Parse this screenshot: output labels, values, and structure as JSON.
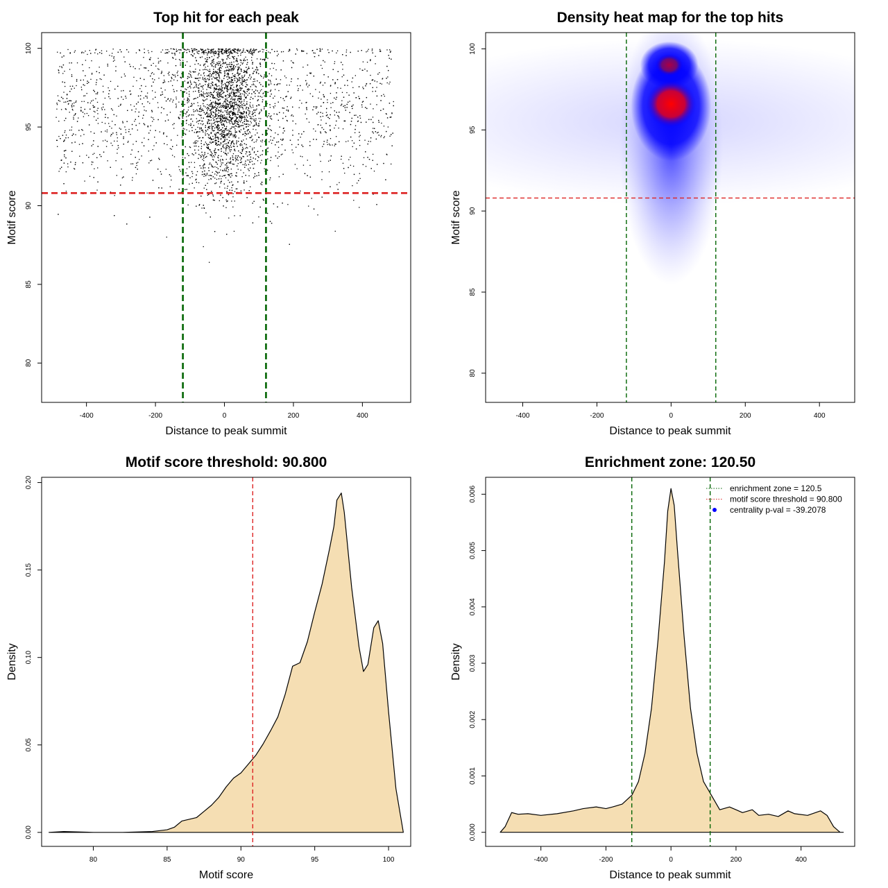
{
  "chart_data": [
    {
      "type": "scatter",
      "title": "Top hit for each peak",
      "xlabel": "Distance to peak summit",
      "ylabel": "Motif score",
      "xlim": [
        -530,
        540
      ],
      "ylim": [
        77.5,
        101.0
      ],
      "xticks": [
        -400,
        -200,
        0,
        200,
        400
      ],
      "yticks": [
        80,
        85,
        90,
        95,
        100
      ],
      "vlines": [
        -120.5,
        120.5
      ],
      "vline_color": "#006400",
      "hline": 90.8,
      "hline_color": "#dd2222",
      "point_color": "#000000",
      "point_summary": "dense cloud of top hits concentrated around distance 0 and scores 90-100"
    },
    {
      "type": "heatmap",
      "title": "Density heat map for the top hits",
      "xlabel": "Distance to peak summit",
      "ylabel": "Motif score",
      "xlim": [
        -500,
        495
      ],
      "ylim": [
        78.2,
        101.0
      ],
      "xticks": [
        -400,
        -200,
        0,
        200,
        400
      ],
      "yticks": [
        80,
        85,
        90,
        95,
        100
      ],
      "vlines": [
        -120.5,
        120.5
      ],
      "vline_color": "#006400",
      "hline": 90.8,
      "hline_color": "#dd2222",
      "hotspots": [
        {
          "x": 0,
          "y": 96.6,
          "peak": "red"
        },
        {
          "x": -5,
          "y": 99.0,
          "peak": "darkred"
        }
      ]
    },
    {
      "type": "area",
      "title": "Motif score threshold: 90.800",
      "xlabel": "Motif score",
      "ylabel": "Density",
      "xlim": [
        76.5,
        101.5
      ],
      "ylim": [
        -0.008,
        0.203
      ],
      "xticks": [
        80,
        85,
        90,
        95,
        100
      ],
      "yticks": [
        0.0,
        0.05,
        0.1,
        0.15,
        0.2
      ],
      "ytick_labels": [
        "0.00",
        "0.05",
        "0.10",
        "0.15",
        "0.20"
      ],
      "vline": 90.8,
      "vline_color": "#dd2222",
      "fill": "#f5deb3",
      "x": [
        77.0,
        78.0,
        80.0,
        82.0,
        84.0,
        85.0,
        85.5,
        86.0,
        86.5,
        87.0,
        87.5,
        88.0,
        88.5,
        89.0,
        89.5,
        90.0,
        90.5,
        91.0,
        91.5,
        92.0,
        92.5,
        93.0,
        93.5,
        94.0,
        94.5,
        95.0,
        95.5,
        96.0,
        96.3,
        96.5,
        96.8,
        97.0,
        97.5,
        98.0,
        98.3,
        98.6,
        99.0,
        99.3,
        99.6,
        100.0,
        100.5,
        101.0
      ],
      "y": [
        0.0,
        0.0005,
        0.0,
        0.0,
        0.0005,
        0.0015,
        0.003,
        0.0065,
        0.0075,
        0.0085,
        0.012,
        0.0155,
        0.02,
        0.026,
        0.031,
        0.034,
        0.039,
        0.044,
        0.0505,
        0.058,
        0.066,
        0.079,
        0.095,
        0.097,
        0.109,
        0.126,
        0.142,
        0.162,
        0.175,
        0.19,
        0.194,
        0.183,
        0.14,
        0.106,
        0.092,
        0.096,
        0.117,
        0.121,
        0.108,
        0.069,
        0.025,
        0.0
      ]
    },
    {
      "type": "area",
      "title": "Enrichment zone: 120.50",
      "xlabel": "Distance to peak summit",
      "ylabel": "Density",
      "xlim": [
        -570,
        565
      ],
      "ylim": [
        -0.00025,
        0.0063
      ],
      "xticks": [
        -400,
        -200,
        0,
        200,
        400
      ],
      "yticks": [
        0.0,
        0.001,
        0.002,
        0.003,
        0.004,
        0.005,
        0.006
      ],
      "ytick_labels": [
        "0.000",
        "0.001",
        "0.002",
        "0.003",
        "0.004",
        "0.005",
        "0.006"
      ],
      "vlines": [
        -120.5,
        120.5
      ],
      "vline_color": "#006400",
      "fill": "#f5deb3",
      "x": [
        -525,
        -510,
        -490,
        -470,
        -440,
        -400,
        -350,
        -300,
        -270,
        -230,
        -200,
        -180,
        -150,
        -120,
        -100,
        -80,
        -60,
        -40,
        -20,
        -10,
        0,
        10,
        20,
        40,
        60,
        80,
        100,
        120,
        150,
        180,
        200,
        220,
        250,
        270,
        300,
        330,
        360,
        380,
        420,
        460,
        480,
        500,
        520,
        530
      ],
      "y": [
        0.0,
        0.0001,
        0.00035,
        0.00032,
        0.00033,
        0.0003,
        0.00033,
        0.00038,
        0.00042,
        0.00045,
        0.00042,
        0.00045,
        0.0005,
        0.00066,
        0.0009,
        0.0014,
        0.0022,
        0.0034,
        0.0048,
        0.0057,
        0.0061,
        0.0058,
        0.005,
        0.0035,
        0.0022,
        0.0014,
        0.0009,
        0.0007,
        0.0004,
        0.00045,
        0.0004,
        0.00035,
        0.0004,
        0.0003,
        0.00032,
        0.00028,
        0.00038,
        0.00033,
        0.0003,
        0.00038,
        0.0003,
        0.0001,
        0.0,
        0.0
      ],
      "legend": {
        "placement": "top-right",
        "entries": [
          {
            "label": "enrichment zone = 120.5",
            "color": "#006400",
            "marker": "dotted-line"
          },
          {
            "label": "motif score threshold = 90.800",
            "color": "#dd2222",
            "marker": "dotted-line"
          },
          {
            "label": "centrality p-val = -39.2078",
            "color": "#0000ff",
            "marker": "dot"
          }
        ]
      }
    }
  ]
}
